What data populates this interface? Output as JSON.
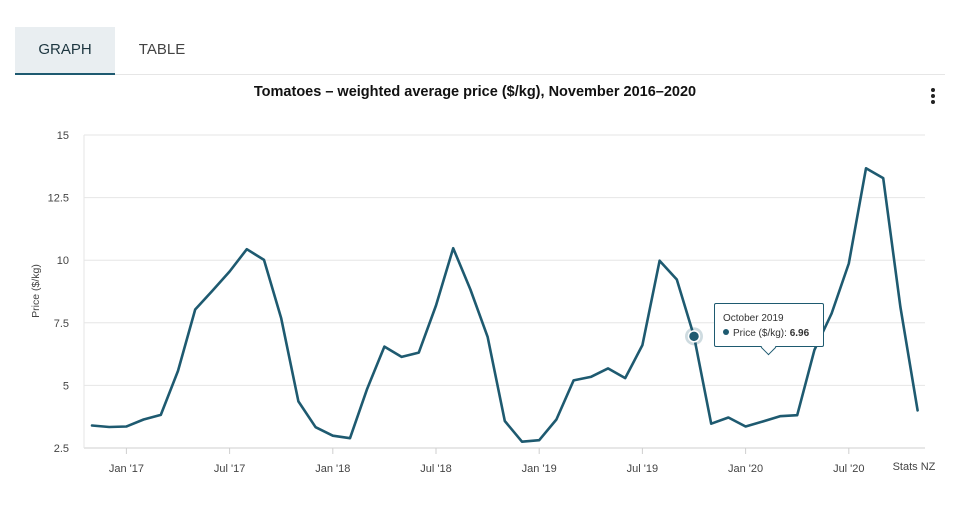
{
  "tabs": [
    {
      "label": "GRAPH",
      "active": true
    },
    {
      "label": "TABLE",
      "active": false
    }
  ],
  "menu_icon": "more-vertical-icon",
  "colors": {
    "line": "#1e5a70",
    "grid": "#e6e6e6",
    "tab_active_bg": "#e9eef1"
  },
  "tooltip": {
    "date": "October 2019",
    "series_label": "Price ($/kg):",
    "value": "6.96"
  },
  "credit": "Stats NZ",
  "chart_data": {
    "type": "line",
    "title": "Tomatoes – weighted average price ($/kg), November 2016–2020",
    "xlabel": "",
    "ylabel": "Price ($/kg)",
    "ylim": [
      2.5,
      15
    ],
    "yticks": [
      2.5,
      5,
      7.5,
      10,
      12.5,
      15
    ],
    "ytick_labels": [
      "2.5",
      "5",
      "7.5",
      "10",
      "12.5",
      "15"
    ],
    "xticks": [
      "Jan '17",
      "Jul '17",
      "Jan '18",
      "Jul '18",
      "Jan '19",
      "Jul '19",
      "Jan '20",
      "Jul '20"
    ],
    "grid": true,
    "legend": "none",
    "series": [
      {
        "name": "Price ($/kg)",
        "x": [
          "2016-11",
          "2016-12",
          "2017-01",
          "2017-02",
          "2017-03",
          "2017-04",
          "2017-05",
          "2017-06",
          "2017-07",
          "2017-08",
          "2017-09",
          "2017-10",
          "2017-11",
          "2017-12",
          "2018-01",
          "2018-02",
          "2018-03",
          "2018-04",
          "2018-05",
          "2018-06",
          "2018-07",
          "2018-08",
          "2018-09",
          "2018-10",
          "2018-11",
          "2018-12",
          "2019-01",
          "2019-02",
          "2019-03",
          "2019-04",
          "2019-05",
          "2019-06",
          "2019-07",
          "2019-08",
          "2019-09",
          "2019-10",
          "2019-11",
          "2019-12",
          "2020-01",
          "2020-02",
          "2020-03",
          "2020-04",
          "2020-05",
          "2020-06",
          "2020-07",
          "2020-08",
          "2020-09",
          "2020-10",
          "2020-11"
        ],
        "values": [
          3.4,
          3.34,
          3.36,
          3.64,
          3.82,
          5.58,
          8.03,
          8.78,
          9.55,
          10.44,
          10.01,
          7.68,
          4.36,
          3.33,
          2.99,
          2.89,
          4.87,
          6.55,
          6.14,
          6.31,
          8.19,
          10.48,
          8.83,
          6.94,
          3.58,
          2.75,
          2.81,
          3.64,
          5.2,
          5.34,
          5.68,
          5.29,
          6.61,
          9.98,
          9.23,
          6.96,
          3.47,
          3.72,
          3.36,
          3.56,
          3.77,
          3.81,
          6.41,
          7.87,
          9.87,
          13.67,
          13.28,
          8.13,
          4.0
        ]
      }
    ],
    "highlight": {
      "x": "2019-10",
      "value": 6.96
    }
  }
}
